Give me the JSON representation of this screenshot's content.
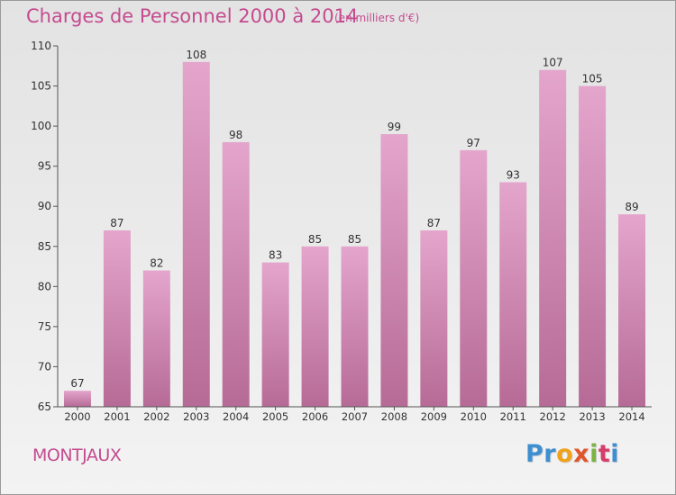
{
  "chart_data": {
    "type": "bar",
    "title": "Charges de Personnel 2000 à 2014",
    "subtitle": "(en milliers d'€)",
    "categories": [
      "2000",
      "2001",
      "2002",
      "2003",
      "2004",
      "2005",
      "2006",
      "2007",
      "2008",
      "2009",
      "2010",
      "2011",
      "2012",
      "2013",
      "2014"
    ],
    "values": [
      67,
      87,
      82,
      108,
      98,
      83,
      85,
      85,
      99,
      87,
      97,
      93,
      107,
      105,
      89
    ],
    "ylim": [
      65,
      110
    ],
    "yticks": [
      65,
      70,
      75,
      80,
      85,
      90,
      95,
      100,
      105,
      110
    ],
    "grid": false,
    "bar_color": "#d88bb8"
  },
  "commune": "MONTJAUX",
  "logo": {
    "parts": [
      "Pr",
      "o",
      "x",
      "i",
      "t",
      "i"
    ],
    "colors": [
      "#3d8fd1",
      "#f0a21a",
      "#e0552a",
      "#7cb342",
      "#d63d6a",
      "#3d8fd1"
    ]
  }
}
